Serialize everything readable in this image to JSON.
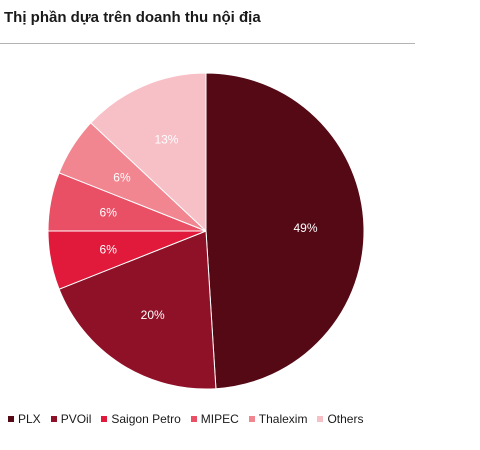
{
  "chart_data": {
    "type": "pie",
    "title": "Thị phần dựa trên doanh thu nội địa",
    "categories": [
      "PLX",
      "PVOil",
      "Saigon Petro",
      "MIPEC",
      "Thalexim",
      "Others"
    ],
    "values": [
      49,
      20,
      6,
      6,
      6,
      13
    ],
    "data_labels": [
      "49%",
      "20%",
      "6%",
      "6%",
      "6%",
      "13%"
    ],
    "colors": [
      "#540914",
      "#8f1127",
      "#e11a3b",
      "#e95066",
      "#f18590",
      "#f7bfc6"
    ],
    "start": "12 o'clock",
    "direction": "clockwise",
    "legend_position": "bottom"
  }
}
